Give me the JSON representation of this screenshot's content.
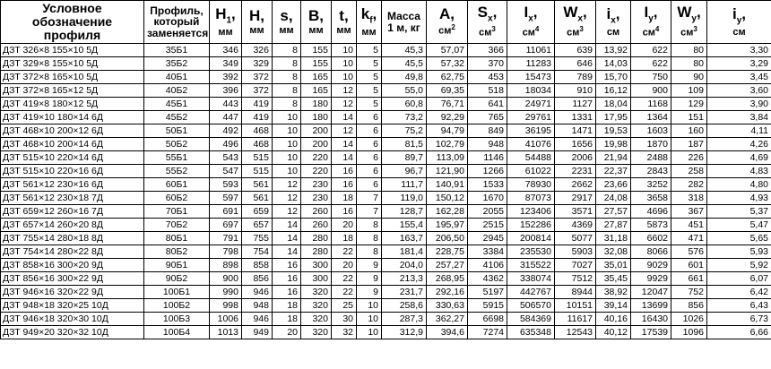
{
  "headers": {
    "designation": "Условное обозначение профиля",
    "replaces": "Профиль, который заменяется",
    "h1": {
      "sym": "H",
      "sub": "1",
      "unit": "мм"
    },
    "h": {
      "sym": "H",
      "unit": "мм"
    },
    "s": {
      "sym": "s",
      "unit": "мм"
    },
    "b": {
      "sym": "B",
      "unit": "мм"
    },
    "t": {
      "sym": "t",
      "unit": "мм"
    },
    "kf": {
      "sym": "k",
      "sub": "f",
      "unit": "мм"
    },
    "mass": {
      "title": "Масса",
      "unit": "1 м, кг"
    },
    "a": {
      "sym": "A",
      "unit_base": "см",
      "unit_sup": "2"
    },
    "sx": {
      "sym": "S",
      "sub": "x",
      "unit_base": "см",
      "unit_sup": "3"
    },
    "ix_big": {
      "sym": "I",
      "sub": "x",
      "unit_base": "см",
      "unit_sup": "4"
    },
    "wx": {
      "sym": "W",
      "sub": "x",
      "unit_base": "см",
      "unit_sup": "3"
    },
    "ix_small": {
      "sym": "i",
      "sub": "x",
      "unit": "см"
    },
    "iy_big": {
      "sym": "I",
      "sub": "y",
      "unit_base": "см",
      "unit_sup": "4"
    },
    "wy": {
      "sym": "W",
      "sub": "y",
      "unit_base": "см",
      "unit_sup": "3"
    },
    "iy_small": {
      "sym": "i",
      "sub": "y",
      "unit": "см"
    }
  },
  "rows": [
    [
      "ДЗТ 326×8 155×10 5Д",
      "35Б1",
      "346",
      "326",
      "8",
      "155",
      "10",
      "5",
      "45,3",
      "57,07",
      "366",
      "11061",
      "639",
      "13,92",
      "622",
      "80",
      "3,30"
    ],
    [
      "ДЗТ 329×8 155×10 5Д",
      "35Б2",
      "349",
      "329",
      "8",
      "155",
      "10",
      "5",
      "45,5",
      "57,32",
      "370",
      "11283",
      "646",
      "14,03",
      "622",
      "80",
      "3,29"
    ],
    [
      "ДЗТ 372×8 165×10 5Д",
      "40Б1",
      "392",
      "372",
      "8",
      "165",
      "10",
      "5",
      "49,8",
      "62,75",
      "453",
      "15473",
      "789",
      "15,70",
      "750",
      "90",
      "3,45"
    ],
    [
      "ДЗТ 372×8 165×12 5Д",
      "40Б2",
      "396",
      "372",
      "8",
      "165",
      "12",
      "5",
      "55,0",
      "69,35",
      "518",
      "18034",
      "910",
      "16,12",
      "900",
      "109",
      "3,60"
    ],
    [
      "ДЗТ 419×8 180×12 5Д",
      "45Б1",
      "443",
      "419",
      "8",
      "180",
      "12",
      "5",
      "60,8",
      "76,71",
      "641",
      "24971",
      "1127",
      "18,04",
      "1168",
      "129",
      "3,90"
    ],
    [
      "ДЗТ 419×10 180×14 6Д",
      "45Б2",
      "447",
      "419",
      "10",
      "180",
      "14",
      "6",
      "73,2",
      "92,29",
      "765",
      "29761",
      "1331",
      "17,95",
      "1364",
      "151",
      "3,84"
    ],
    [
      "ДЗТ 468×10 200×12 6Д",
      "50Б1",
      "492",
      "468",
      "10",
      "200",
      "12",
      "6",
      "75,2",
      "94,79",
      "849",
      "36195",
      "1471",
      "19,53",
      "1603",
      "160",
      "4,11"
    ],
    [
      "ДЗТ 468×10 200×14 6Д",
      "50Б2",
      "496",
      "468",
      "10",
      "200",
      "14",
      "6",
      "81,5",
      "102,79",
      "948",
      "41076",
      "1656",
      "19,98",
      "1870",
      "187",
      "4,26"
    ],
    [
      "ДЗТ 515×10 220×14 6Д",
      "55Б1",
      "543",
      "515",
      "10",
      "220",
      "14",
      "6",
      "89,7",
      "113,09",
      "1146",
      "54488",
      "2006",
      "21,94",
      "2488",
      "226",
      "4,69"
    ],
    [
      "ДЗТ 515×10 220×16 6Д",
      "55Б2",
      "547",
      "515",
      "10",
      "220",
      "16",
      "6",
      "96,7",
      "121,90",
      "1266",
      "61022",
      "2231",
      "22,37",
      "2843",
      "258",
      "4,83"
    ],
    [
      "ДЗТ 561×12 230×16 6Д",
      "60Б1",
      "593",
      "561",
      "12",
      "230",
      "16",
      "6",
      "111,7",
      "140,91",
      "1533",
      "78930",
      "2662",
      "23,66",
      "3252",
      "282",
      "4,80"
    ],
    [
      "ДЗТ 561×12 230×18 7Д",
      "60Б2",
      "597",
      "561",
      "12",
      "230",
      "18",
      "7",
      "119,0",
      "150,12",
      "1670",
      "87073",
      "2917",
      "24,08",
      "3658",
      "318",
      "4,93"
    ],
    [
      "ДЗТ 659×12 260×16 7Д",
      "70Б1",
      "691",
      "659",
      "12",
      "260",
      "16",
      "7",
      "128,7",
      "162,28",
      "2055",
      "123406",
      "3571",
      "27,57",
      "4696",
      "367",
      "5,37"
    ],
    [
      "ДЗТ 657×14 260×20 8Д",
      "70Б2",
      "697",
      "657",
      "14",
      "260",
      "20",
      "8",
      "155,4",
      "195,97",
      "2515",
      "152286",
      "4369",
      "27,87",
      "5873",
      "451",
      "5,47"
    ],
    [
      "ДЗТ 755×14 280×18 8Д",
      "80Б1",
      "791",
      "755",
      "14",
      "280",
      "18",
      "8",
      "163,7",
      "206,50",
      "2945",
      "200814",
      "5077",
      "31,18",
      "6602",
      "471",
      "5,65"
    ],
    [
      "ДЗТ 754×14 280×22 8Д",
      "80Б2",
      "798",
      "754",
      "14",
      "280",
      "22",
      "8",
      "181,4",
      "228,75",
      "3384",
      "235530",
      "5903",
      "32,08",
      "8066",
      "576",
      "5,93"
    ],
    [
      "ДЗТ 858×16 300×20 9Д",
      "90Б1",
      "898",
      "858",
      "16",
      "300",
      "20",
      "9",
      "204,0",
      "257,27",
      "4106",
      "315522",
      "7027",
      "35,01",
      "9029",
      "601",
      "5,92"
    ],
    [
      "ДЗТ 856×16 300×22 9Д",
      "90Б2",
      "900",
      "856",
      "16",
      "300",
      "22",
      "9",
      "213,3",
      "268,95",
      "4362",
      "338074",
      "7512",
      "35,45",
      "9929",
      "661",
      "6,07"
    ],
    [
      "ДЗТ 946×16 320×22 9Д",
      "100Б1",
      "990",
      "946",
      "16",
      "320",
      "22",
      "9",
      "231,7",
      "292,16",
      "5197",
      "442767",
      "8944",
      "38,92",
      "12047",
      "752",
      "6,42"
    ],
    [
      "ДЗТ 948×18 320×25 10Д",
      "100Б2",
      "998",
      "948",
      "18",
      "320",
      "25",
      "10",
      "258,6",
      "330,63",
      "5915",
      "506570",
      "10151",
      "39,14",
      "13699",
      "856",
      "6,43"
    ],
    [
      "ДЗТ 946×18 320×30 10Д",
      "100Б3",
      "1006",
      "946",
      "18",
      "320",
      "30",
      "10",
      "287,3",
      "362,27",
      "6698",
      "584369",
      "11617",
      "40,16",
      "16430",
      "1026",
      "6,73"
    ],
    [
      "ДЗТ 949×20 320×32 10Д",
      "100Б4",
      "1013",
      "949",
      "20",
      "320",
      "32",
      "10",
      "312,9",
      "394,6",
      "7274",
      "635348",
      "12543",
      "40,12",
      "17539",
      "1096",
      "6,66"
    ]
  ]
}
